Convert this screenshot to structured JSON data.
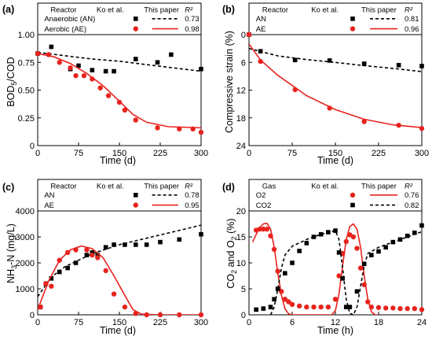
{
  "chart_data": [
    {
      "panel": "(a)",
      "type": "scatter",
      "xlabel": "Time (d)",
      "ylabel": "BOD5/COD",
      "xlim": [
        0,
        300
      ],
      "ylim": [
        0,
        1.0
      ],
      "xticks": [
        0,
        75,
        150,
        225,
        300
      ],
      "yticks": [
        0.0,
        0.25,
        0.5,
        0.75,
        1.0
      ],
      "ytick_labels": [
        "0",
        "0.25",
        "0.50",
        "0.75",
        "1.00"
      ],
      "legend_headers": {
        "group": "Reactor",
        "data": "Ko et al.",
        "model": "This paper",
        "stat": "R²"
      },
      "series": [
        {
          "name": "Anaerobic (AN)",
          "color": "#000000",
          "marker": "square",
          "line": "dashed",
          "r2": "0.73",
          "points": [
            [
              0,
              0.83
            ],
            [
              25,
              0.89
            ],
            [
              60,
              0.69
            ],
            [
              75,
              0.72
            ],
            [
              100,
              0.68
            ],
            [
              125,
              0.67
            ],
            [
              140,
              0.67
            ],
            [
              180,
              0.78
            ],
            [
              220,
              0.75
            ],
            [
              245,
              0.82
            ],
            [
              300,
              0.69
            ]
          ],
          "fit": [
            [
              0,
              0.84
            ],
            [
              50,
              0.81
            ],
            [
              100,
              0.78
            ],
            [
              150,
              0.76
            ],
            [
              200,
              0.73
            ],
            [
              250,
              0.7
            ],
            [
              300,
              0.67
            ]
          ]
        },
        {
          "name": "Aerobic (AE)",
          "color": "#e8231e",
          "marker": "circle",
          "line": "solid",
          "r2": "0.98",
          "points": [
            [
              0,
              0.83
            ],
            [
              20,
              0.82
            ],
            [
              40,
              0.75
            ],
            [
              60,
              0.7
            ],
            [
              70,
              0.63
            ],
            [
              85,
              0.63
            ],
            [
              100,
              0.6
            ],
            [
              115,
              0.52
            ],
            [
              130,
              0.45
            ],
            [
              150,
              0.39
            ],
            [
              160,
              0.32
            ],
            [
              180,
              0.23
            ],
            [
              220,
              0.16
            ],
            [
              260,
              0.15
            ],
            [
              285,
              0.15
            ],
            [
              300,
              0.12
            ]
          ],
          "fit": [
            [
              0,
              0.83
            ],
            [
              30,
              0.8
            ],
            [
              60,
              0.74
            ],
            [
              90,
              0.65
            ],
            [
              120,
              0.54
            ],
            [
              150,
              0.4
            ],
            [
              175,
              0.28
            ],
            [
              200,
              0.21
            ],
            [
              240,
              0.17
            ],
            [
              300,
              0.16
            ]
          ]
        }
      ]
    },
    {
      "panel": "(b)",
      "type": "scatter",
      "xlabel": "Time (d)",
      "ylabel": "Compressive strain (%)",
      "xlim": [
        0,
        300
      ],
      "ylim": [
        0,
        24
      ],
      "y_inverted": true,
      "xticks": [
        0,
        75,
        150,
        225,
        300
      ],
      "yticks": [
        0,
        6,
        12,
        18,
        24
      ],
      "legend_headers": {
        "group": "Reactor",
        "data": "Ko et al.",
        "model": "This paper",
        "stat": "R²"
      },
      "series": [
        {
          "name": "AN",
          "color": "#000000",
          "marker": "square",
          "line": "dashed",
          "r2": "0.81",
          "points": [
            [
              0,
              0.0
            ],
            [
              20,
              3.6
            ],
            [
              80,
              5.5
            ],
            [
              140,
              5.6
            ],
            [
              200,
              6.3
            ],
            [
              260,
              6.6
            ],
            [
              300,
              6.8
            ]
          ],
          "fit": [
            [
              0,
              3.0
            ],
            [
              50,
              4.6
            ],
            [
              100,
              5.4
            ],
            [
              150,
              6.0
            ],
            [
              200,
              6.7
            ],
            [
              250,
              7.3
            ],
            [
              300,
              8.0
            ]
          ]
        },
        {
          "name": "AE",
          "color": "#e8231e",
          "marker": "circle",
          "line": "solid",
          "r2": "0.96",
          "points": [
            [
              0,
              0.0
            ],
            [
              20,
              5.8
            ],
            [
              80,
              11.9
            ],
            [
              140,
              15.9
            ],
            [
              200,
              18.8
            ],
            [
              260,
              19.6
            ],
            [
              300,
              20.3
            ]
          ],
          "fit": [
            [
              0,
              2.0
            ],
            [
              20,
              5.5
            ],
            [
              50,
              8.8
            ],
            [
              100,
              13.2
            ],
            [
              150,
              16.2
            ],
            [
              200,
              18.3
            ],
            [
              250,
              19.5
            ],
            [
              300,
              20.1
            ]
          ]
        }
      ]
    },
    {
      "panel": "(c)",
      "type": "scatter",
      "xlabel": "Time (d)",
      "ylabel": "NH3-N (mg/L)",
      "xlim": [
        0,
        300
      ],
      "ylim": [
        0,
        4000
      ],
      "xticks": [
        0,
        75,
        150,
        225,
        300
      ],
      "yticks": [
        0,
        1000,
        2000,
        3000,
        4000
      ],
      "legend_headers": {
        "group": "Reactor",
        "data": "Ko et al.",
        "model": "This paper",
        "stat": "R²"
      },
      "series": [
        {
          "name": "AN",
          "color": "#000000",
          "marker": "square",
          "line": "dashed",
          "r2": "0.78",
          "points": [
            [
              5,
              300
            ],
            [
              15,
              1200
            ],
            [
              25,
              1400
            ],
            [
              40,
              1650
            ],
            [
              55,
              1800
            ],
            [
              70,
              2000
            ],
            [
              90,
              2300
            ],
            [
              100,
              2400
            ],
            [
              110,
              2300
            ],
            [
              125,
              2600
            ],
            [
              140,
              2700
            ],
            [
              160,
              2700
            ],
            [
              180,
              2700
            ],
            [
              200,
              2700
            ],
            [
              225,
              2800
            ],
            [
              260,
              2900
            ],
            [
              300,
              3100
            ]
          ],
          "fit": [
            [
              0,
              700
            ],
            [
              25,
              1450
            ],
            [
              50,
              1850
            ],
            [
              100,
              2350
            ],
            [
              150,
              2700
            ],
            [
              200,
              2950
            ],
            [
              250,
              3200
            ],
            [
              300,
              3450
            ]
          ]
        },
        {
          "name": "AE",
          "color": "#e8231e",
          "marker": "circle",
          "line": "solid",
          "r2": "0.95",
          "points": [
            [
              5,
              300
            ],
            [
              15,
              1200
            ],
            [
              25,
              1100
            ],
            [
              40,
              2100
            ],
            [
              55,
              2400
            ],
            [
              70,
              2500
            ],
            [
              90,
              2500
            ],
            [
              100,
              2300
            ],
            [
              110,
              2200
            ],
            [
              125,
              1700
            ],
            [
              140,
              800
            ],
            [
              160,
              300
            ],
            [
              180,
              50
            ],
            [
              200,
              0
            ],
            [
              225,
              0
            ],
            [
              260,
              0
            ],
            [
              300,
              0
            ]
          ],
          "fit": [
            [
              0,
              200
            ],
            [
              20,
              1300
            ],
            [
              40,
              2100
            ],
            [
              60,
              2500
            ],
            [
              80,
              2650
            ],
            [
              100,
              2550
            ],
            [
              120,
              2200
            ],
            [
              140,
              1500
            ],
            [
              160,
              750
            ],
            [
              175,
              200
            ],
            [
              190,
              30
            ],
            [
              220,
              0
            ],
            [
              300,
              0
            ]
          ]
        }
      ]
    },
    {
      "panel": "(d)",
      "type": "scatter",
      "xlabel": "Time (h)",
      "ylabel": "CO2 and O2 (%)",
      "xlim": [
        0,
        24
      ],
      "ylim": [
        0,
        20
      ],
      "xticks": [
        0,
        6,
        12,
        18,
        24
      ],
      "yticks": [
        0,
        5,
        10,
        15,
        20
      ],
      "legend_headers": {
        "group": "Gas",
        "data": "Ko et al.",
        "model": "This paper",
        "stat": "R²"
      },
      "series": [
        {
          "name": "O2",
          "color": "#e8231e",
          "marker": "circle",
          "line": "solid",
          "r2": "0.76",
          "points": [
            [
              1,
              16.3
            ],
            [
              1.5,
              16.5
            ],
            [
              2,
              16.5
            ],
            [
              2.5,
              16.5
            ],
            [
              3,
              15.2
            ],
            [
              3.5,
              12.6
            ],
            [
              4,
              8.4
            ],
            [
              4.5,
              4.5
            ],
            [
              5,
              3.0
            ],
            [
              5.5,
              2.5
            ],
            [
              6,
              2.0
            ],
            [
              7,
              1.7
            ],
            [
              8,
              1.5
            ],
            [
              9,
              1.5
            ],
            [
              10,
              1.5
            ],
            [
              11,
              1.5
            ],
            [
              12,
              3.0
            ],
            [
              12.5,
              7.5
            ],
            [
              13,
              11.8
            ],
            [
              13.5,
              14.1
            ],
            [
              14,
              15.4
            ],
            [
              14.5,
              15.0
            ],
            [
              15,
              12.8
            ],
            [
              15.5,
              9.0
            ],
            [
              16,
              5.8
            ],
            [
              16.5,
              2.5
            ],
            [
              17,
              1.5
            ],
            [
              18,
              1.4
            ],
            [
              19,
              1.3
            ],
            [
              20,
              1.3
            ],
            [
              21,
              1.2
            ],
            [
              22,
              1.2
            ],
            [
              23,
              1.2
            ],
            [
              24,
              1.0
            ]
          ],
          "fit": [
            [
              0.5,
              14.0
            ],
            [
              1.0,
              15.5
            ],
            [
              1.5,
              16.8
            ],
            [
              2.0,
              17.5
            ],
            [
              2.5,
              17.6
            ],
            [
              3.0,
              16.5
            ],
            [
              3.5,
              13.0
            ],
            [
              4.0,
              8.0
            ],
            [
              4.5,
              3.8
            ],
            [
              5.0,
              1.2
            ],
            [
              5.5,
              0.2
            ],
            [
              6.0,
              0.0
            ],
            [
              11.5,
              0.0
            ],
            [
              12.0,
              0.8
            ],
            [
              12.5,
              4.0
            ],
            [
              13.0,
              9.5
            ],
            [
              13.5,
              14.5
            ],
            [
              14.0,
              17.0
            ],
            [
              14.5,
              17.5
            ],
            [
              15.0,
              16.5
            ],
            [
              15.5,
              13.0
            ],
            [
              16.0,
              7.5
            ],
            [
              16.5,
              3.0
            ],
            [
              17.0,
              0.6
            ],
            [
              17.5,
              0.0
            ],
            [
              18.0,
              0.0
            ]
          ]
        },
        {
          "name": "CO2",
          "color": "#000000",
          "marker": "square",
          "line": "dashed",
          "r2": "0.82",
          "points": [
            [
              1,
              1.0
            ],
            [
              2,
              1.2
            ],
            [
              3,
              1.5
            ],
            [
              3.5,
              3.0
            ],
            [
              4,
              5.0
            ],
            [
              5,
              8.0
            ],
            [
              6,
              10.0
            ],
            [
              7,
              12.3
            ],
            [
              8,
              13.8
            ],
            [
              9,
              15.0
            ],
            [
              10,
              15.5
            ],
            [
              11,
              15.9
            ],
            [
              12,
              16.2
            ],
            [
              12.5,
              12.0
            ],
            [
              13,
              7.0
            ],
            [
              13.5,
              1.5
            ],
            [
              14,
              1.5
            ],
            [
              15,
              4.5
            ],
            [
              16,
              9.8
            ],
            [
              17,
              11.5
            ],
            [
              18,
              12.2
            ],
            [
              19,
              13.0
            ],
            [
              20,
              14.0
            ],
            [
              21,
              14.5
            ],
            [
              22,
              15.2
            ],
            [
              23,
              15.8
            ],
            [
              24,
              17.2
            ]
          ],
          "fit": [
            [
              3.0,
              0.0
            ],
            [
              3.5,
              1.5
            ],
            [
              4.0,
              5.0
            ],
            [
              4.5,
              9.0
            ],
            [
              5.0,
              11.5
            ],
            [
              6.0,
              13.2
            ],
            [
              8.0,
              14.5
            ],
            [
              10.0,
              15.5
            ],
            [
              12.0,
              16.2
            ],
            [
              12.5,
              14.5
            ],
            [
              13.0,
              9.0
            ],
            [
              13.5,
              3.0
            ],
            [
              14.0,
              0.3
            ],
            [
              14.5,
              0.0
            ],
            [
              15.0,
              1.5
            ],
            [
              15.5,
              5.5
            ],
            [
              16.0,
              9.5
            ],
            [
              16.5,
              11.8
            ],
            [
              18.0,
              13.0
            ],
            [
              20.0,
              14.0
            ],
            [
              22.0,
              15.0
            ],
            [
              24.0,
              16.0
            ]
          ]
        }
      ]
    }
  ]
}
